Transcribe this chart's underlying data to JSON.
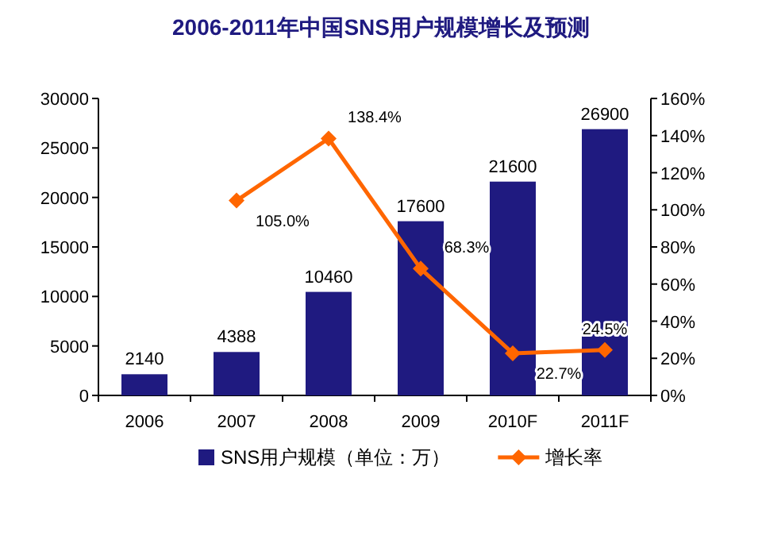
{
  "chart_data": {
    "type": "bar",
    "title": "2006-2011年中国SNS用户规模增长及预测",
    "categories": [
      "2006",
      "2007",
      "2008",
      "2009",
      "2010F",
      "2011F"
    ],
    "series": [
      {
        "name": "SNS用户规模（单位：万）",
        "type": "bar",
        "color": "#1f1a80",
        "values": [
          2140,
          4388,
          10460,
          17600,
          21600,
          26900
        ],
        "value_labels": [
          "2140",
          "4388",
          "10460",
          "17600",
          "21600",
          "26900"
        ]
      },
      {
        "name": "增长率",
        "type": "line",
        "axis": "y2",
        "color": "#ff6600",
        "marker": "diamond",
        "values": [
          null,
          105.0,
          138.4,
          68.3,
          22.7,
          24.5
        ],
        "value_labels": [
          null,
          "105.0%",
          "138.4%",
          "68.3%",
          "22.7%",
          "24.5%"
        ]
      }
    ],
    "ylim": [
      0,
      30000
    ],
    "yticks": [
      0,
      5000,
      10000,
      15000,
      20000,
      25000,
      30000
    ],
    "y2lim": [
      0,
      160
    ],
    "y2ticks": [
      {
        "value": 0,
        "label": "0%"
      },
      {
        "value": 20,
        "label": "20%"
      },
      {
        "value": 40,
        "label": "40%"
      },
      {
        "value": 60,
        "label": "60%"
      },
      {
        "value": 80,
        "label": "80%"
      },
      {
        "value": 100,
        "label": "100%"
      },
      {
        "value": 120,
        "label": "120%"
      },
      {
        "value": 140,
        "label": "140%"
      },
      {
        "value": 160,
        "label": "160%"
      }
    ],
    "legend": "bottom"
  }
}
